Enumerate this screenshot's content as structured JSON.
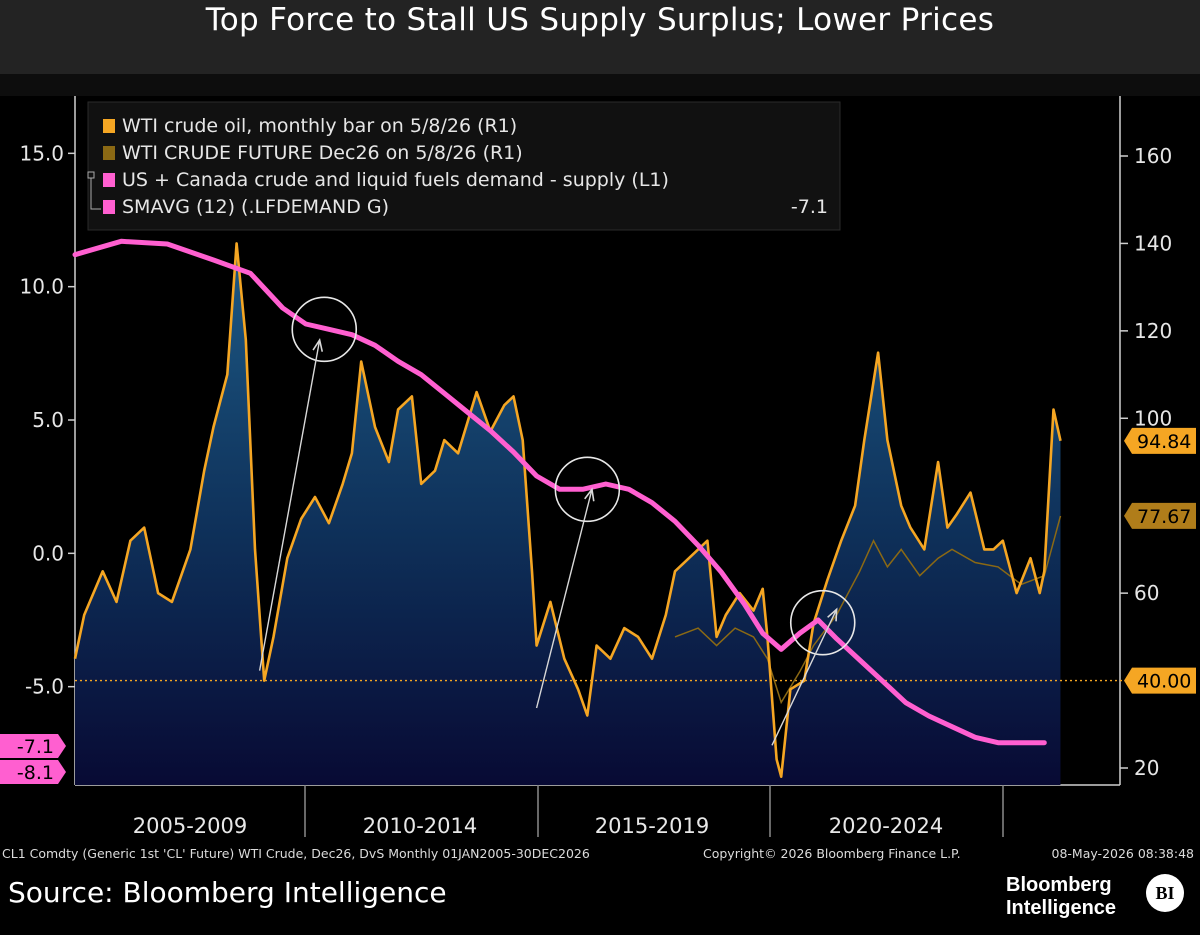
{
  "header": {
    "title": "Top Force to Stall US Supply Surplus; Lower Prices"
  },
  "footer": {
    "source": "Source: Bloomberg Intelligence",
    "brand_line1": "Bloomberg",
    "brand_line2": "Intelligence",
    "badge": "BI"
  },
  "chart_data": {
    "type": "line",
    "x_labels": [
      "2005-2009",
      "2010-2014",
      "2015-2019",
      "2020-2024"
    ],
    "x_range": [
      2005.0,
      2026.99
    ],
    "left_axis": {
      "ticks": [
        15.0,
        10.0,
        5.0,
        0.0,
        -5.0
      ],
      "tick_labels": [
        "15.0",
        "10.0",
        "5.0",
        "0.0",
        "-5.0"
      ],
      "range": [
        -8.5,
        17.0
      ]
    },
    "right_axis": {
      "ticks": [
        160,
        140,
        120,
        100,
        60,
        20
      ],
      "range": [
        15,
        175
      ]
    },
    "legend": {
      "placement": "top-left",
      "items": [
        {
          "label": "WTI crude oil, monthly bar on 5/8/26 (R1)",
          "color": "#f5a623",
          "value": ""
        },
        {
          "label": "WTI CRUDE FUTURE Dec26 on 5/8/26 (R1)",
          "color": "#8b6914",
          "value": ""
        },
        {
          "label": "US + Canada crude and liquid fuels demand - supply (L1)",
          "color": "#ff5fd0",
          "value": ""
        },
        {
          "label": "SMAVG (12) (.LFDEMAND G)",
          "color": "#ff5fd0",
          "value": "-7.1"
        }
      ]
    },
    "series": [
      {
        "name": "WTI crude oil, monthly bar on 5/8/26 (R1)",
        "axis": "right",
        "color": "#f5a623",
        "points": [
          [
            2005.0,
            45
          ],
          [
            2005.2,
            55
          ],
          [
            2005.6,
            65
          ],
          [
            2005.9,
            58
          ],
          [
            2006.2,
            72
          ],
          [
            2006.5,
            75
          ],
          [
            2006.8,
            60
          ],
          [
            2007.1,
            58
          ],
          [
            2007.5,
            70
          ],
          [
            2007.8,
            88
          ],
          [
            2008.0,
            98
          ],
          [
            2008.3,
            110
          ],
          [
            2008.5,
            140
          ],
          [
            2008.7,
            118
          ],
          [
            2008.9,
            70
          ],
          [
            2009.1,
            40
          ],
          [
            2009.3,
            50
          ],
          [
            2009.6,
            68
          ],
          [
            2009.9,
            77
          ],
          [
            2010.2,
            82
          ],
          [
            2010.5,
            76
          ],
          [
            2010.8,
            85
          ],
          [
            2011.0,
            92
          ],
          [
            2011.2,
            113
          ],
          [
            2011.5,
            98
          ],
          [
            2011.8,
            90
          ],
          [
            2012.0,
            102
          ],
          [
            2012.3,
            105
          ],
          [
            2012.5,
            85
          ],
          [
            2012.8,
            88
          ],
          [
            2013.0,
            95
          ],
          [
            2013.3,
            92
          ],
          [
            2013.7,
            106
          ],
          [
            2014.0,
            97
          ],
          [
            2014.3,
            103
          ],
          [
            2014.5,
            105
          ],
          [
            2014.7,
            95
          ],
          [
            2014.9,
            65
          ],
          [
            2015.0,
            48
          ],
          [
            2015.3,
            58
          ],
          [
            2015.6,
            45
          ],
          [
            2015.9,
            38
          ],
          [
            2016.1,
            32
          ],
          [
            2016.3,
            48
          ],
          [
            2016.6,
            45
          ],
          [
            2016.9,
            52
          ],
          [
            2017.2,
            50
          ],
          [
            2017.5,
            45
          ],
          [
            2017.8,
            55
          ],
          [
            2018.0,
            65
          ],
          [
            2018.3,
            68
          ],
          [
            2018.7,
            72
          ],
          [
            2018.9,
            50
          ],
          [
            2019.1,
            55
          ],
          [
            2019.4,
            60
          ],
          [
            2019.7,
            56
          ],
          [
            2019.9,
            61
          ],
          [
            2020.0,
            50
          ],
          [
            2020.2,
            22
          ],
          [
            2020.3,
            18
          ],
          [
            2020.5,
            38
          ],
          [
            2020.8,
            40
          ],
          [
            2021.0,
            53
          ],
          [
            2021.3,
            63
          ],
          [
            2021.6,
            72
          ],
          [
            2021.9,
            80
          ],
          [
            2022.1,
            95
          ],
          [
            2022.4,
            115
          ],
          [
            2022.6,
            95
          ],
          [
            2022.9,
            80
          ],
          [
            2023.1,
            75
          ],
          [
            2023.4,
            70
          ],
          [
            2023.7,
            90
          ],
          [
            2023.9,
            75
          ],
          [
            2024.1,
            78
          ],
          [
            2024.4,
            83
          ],
          [
            2024.7,
            70
          ],
          [
            2024.9,
            70
          ],
          [
            2025.1,
            72
          ],
          [
            2025.4,
            60
          ],
          [
            2025.7,
            68
          ],
          [
            2025.9,
            60
          ],
          [
            2026.0,
            65
          ],
          [
            2026.2,
            102
          ],
          [
            2026.35,
            94.84
          ]
        ]
      },
      {
        "name": "WTI CRUDE FUTURE Dec26 on 5/8/26 (R1)",
        "axis": "right",
        "color": "#8b6914",
        "points": [
          [
            2018.0,
            50
          ],
          [
            2018.5,
            52
          ],
          [
            2018.9,
            48
          ],
          [
            2019.3,
            52
          ],
          [
            2019.7,
            50
          ],
          [
            2020.0,
            45
          ],
          [
            2020.3,
            35
          ],
          [
            2020.7,
            42
          ],
          [
            2021.0,
            48
          ],
          [
            2021.5,
            55
          ],
          [
            2022.0,
            65
          ],
          [
            2022.3,
            72
          ],
          [
            2022.6,
            66
          ],
          [
            2022.9,
            70
          ],
          [
            2023.3,
            64
          ],
          [
            2023.7,
            68
          ],
          [
            2024.0,
            70
          ],
          [
            2024.5,
            67
          ],
          [
            2025.0,
            66
          ],
          [
            2025.5,
            62
          ],
          [
            2026.0,
            64
          ],
          [
            2026.35,
            77.67
          ]
        ]
      },
      {
        "name": "US + Canada crude and liquid fuels demand - supply (L1)",
        "axis": "left",
        "color": "#ff5fd0",
        "points": [
          [
            2005.0,
            11.2
          ],
          [
            2006.0,
            11.7
          ],
          [
            2007.0,
            11.6
          ],
          [
            2008.0,
            11.0
          ],
          [
            2008.8,
            10.5
          ],
          [
            2009.5,
            9.2
          ],
          [
            2010.0,
            8.6
          ],
          [
            2010.5,
            8.4
          ],
          [
            2011.0,
            8.2
          ],
          [
            2011.5,
            7.8
          ],
          [
            2012.0,
            7.2
          ],
          [
            2012.5,
            6.7
          ],
          [
            2013.0,
            6.0
          ],
          [
            2013.5,
            5.3
          ],
          [
            2014.0,
            4.6
          ],
          [
            2014.5,
            3.8
          ],
          [
            2015.0,
            2.9
          ],
          [
            2015.5,
            2.4
          ],
          [
            2016.0,
            2.4
          ],
          [
            2016.5,
            2.6
          ],
          [
            2017.0,
            2.4
          ],
          [
            2017.5,
            1.9
          ],
          [
            2018.0,
            1.2
          ],
          [
            2018.5,
            0.3
          ],
          [
            2019.0,
            -0.7
          ],
          [
            2019.5,
            -1.9
          ],
          [
            2019.9,
            -3.0
          ],
          [
            2020.3,
            -3.6
          ],
          [
            2020.7,
            -3.0
          ],
          [
            2021.1,
            -2.5
          ],
          [
            2021.5,
            -3.2
          ],
          [
            2022.0,
            -4.0
          ],
          [
            2022.5,
            -4.8
          ],
          [
            2023.0,
            -5.6
          ],
          [
            2023.5,
            -6.1
          ],
          [
            2024.0,
            -6.5
          ],
          [
            2024.5,
            -6.9
          ],
          [
            2025.0,
            -7.1
          ],
          [
            2025.5,
            -7.1
          ],
          [
            2026.0,
            -7.1
          ]
        ]
      }
    ],
    "reference_line": {
      "axis": "right",
      "value": 40.0,
      "color": "#f5a623",
      "label": "40.00"
    },
    "callouts": [
      {
        "value": "94.84",
        "axis": "right",
        "at": 94.84,
        "color": "#f5a623"
      },
      {
        "value": "77.67",
        "axis": "right",
        "at": 77.67,
        "color": "#b07d1a"
      },
      {
        "value": "-7.1",
        "axis": "left",
        "at": -7.1,
        "color": "#ff5fd0"
      },
      {
        "value": "-8.1",
        "axis": "left",
        "at": -8.1,
        "color": "#ff5fd0"
      }
    ],
    "annotations": [
      {
        "type": "circle",
        "x": 2010.4,
        "axis": "left",
        "y": 8.4
      },
      {
        "type": "circle",
        "x": 2016.1,
        "axis": "left",
        "y": 2.4
      },
      {
        "type": "circle",
        "x": 2021.2,
        "axis": "left",
        "y": -2.6
      }
    ],
    "arrows": [
      {
        "from": [
          2009.0,
          -4.4
        ],
        "to": [
          2010.3,
          8.0
        ]
      },
      {
        "from": [
          2015.0,
          -5.8
        ],
        "to": [
          2016.2,
          2.4
        ]
      },
      {
        "from": [
          2020.1,
          -7.2
        ],
        "to": [
          2021.5,
          -2.1
        ]
      }
    ],
    "bottom_info": {
      "left": "CL1 Comdty (Generic 1st 'CL' Future) WTI Crude, Dec26, DvS Monthly 01JAN2005-30DEC2026",
      "center": "Copyright© 2026 Bloomberg Finance L.P.",
      "right": "08-May-2026 08:38:48"
    }
  }
}
